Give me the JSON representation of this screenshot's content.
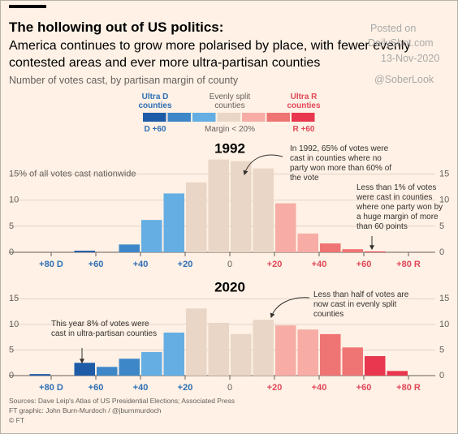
{
  "header": {
    "title": "The hollowing out of US politics:",
    "subtitle": "America continues to grow more polarised by place, with fewer evenly contested areas and ever more ultra-partisan counties",
    "note": "Number of votes cast, by partisan margin of county"
  },
  "watermark": {
    "posted": "Posted on",
    "site": "DailyShot.com",
    "date": "13-Nov-2020",
    "handle": "@SoberLook"
  },
  "legend": {
    "left": "Ultra D counties",
    "middle": "Evenly split counties",
    "right": "Ultra R counties",
    "left_scale": "D +60",
    "middle_scale": "Margin < 20%",
    "right_scale": "R +60",
    "colors": [
      "#1f5ca8",
      "#3d87c9",
      "#64aee3",
      "#ead6c6",
      "#f7aca5",
      "#ef7474",
      "#e8374e"
    ]
  },
  "chart_data": [
    {
      "type": "histogram",
      "title": "1992",
      "bins": [
        -90,
        -80,
        -70,
        -60,
        -50,
        -40,
        -30,
        -20,
        -10,
        0,
        10,
        20,
        30,
        40,
        50,
        60,
        70,
        80,
        90
      ],
      "values": [
        0,
        0,
        0.3,
        0,
        1.5,
        6.2,
        11.3,
        13.4,
        17.8,
        17.5,
        16.1,
        9.4,
        3.6,
        1.7,
        0.6,
        0.15,
        0,
        0
      ],
      "colors": [
        "#1f5ca8",
        "#1f5ca8",
        "#1f5ca8",
        "#3d87c9",
        "#3d87c9",
        "#64aee3",
        "#64aee3",
        "#ead6c6",
        "#ead6c6",
        "#ead6c6",
        "#ead6c6",
        "#f7aca5",
        "#f7aca5",
        "#ef7474",
        "#ef7474",
        "#e8374e",
        "#e8374e",
        "#e8374e"
      ],
      "xlim": [
        -90,
        90
      ],
      "xticks": [
        {
          "value": -80,
          "label": "+80 D"
        },
        {
          "value": -60,
          "label": "+60"
        },
        {
          "value": -40,
          "label": "+40"
        },
        {
          "value": -20,
          "label": "+20"
        },
        0,
        {
          "value": 20,
          "label": "+20"
        },
        {
          "value": 40,
          "label": "+40"
        },
        {
          "value": 60,
          "label": "+60"
        },
        {
          "value": 80,
          "label": "+80 R"
        }
      ],
      "ylim": [
        0,
        19
      ],
      "yticks": [
        0,
        5,
        10,
        {
          "value": 15,
          "label": "15% of all votes cast nationwide"
        }
      ],
      "y2ticks": [
        0,
        5,
        10,
        15
      ],
      "grid": true,
      "annotations": [
        "In 1992, 65% of votes were cast in counties where no party won more than 60% of the vote",
        "Less than 1% of votes were cast in counties where one party won by a huge margin of more than 60 points"
      ]
    },
    {
      "type": "histogram",
      "title": "2020",
      "bins": [
        -90,
        -80,
        -70,
        -60,
        -50,
        -40,
        -30,
        -20,
        -10,
        0,
        10,
        20,
        30,
        40,
        50,
        60,
        70,
        80,
        90
      ],
      "values": [
        0.3,
        0,
        2.5,
        1.7,
        3.3,
        4.6,
        8.4,
        13.1,
        10.3,
        8.1,
        10.9,
        9.8,
        9.0,
        8.1,
        5.5,
        3.8,
        0.9,
        0
      ],
      "colors": [
        "#1f5ca8",
        "#1f5ca8",
        "#1f5ca8",
        "#3d87c9",
        "#3d87c9",
        "#64aee3",
        "#64aee3",
        "#ead6c6",
        "#ead6c6",
        "#ead6c6",
        "#ead6c6",
        "#f7aca5",
        "#f7aca5",
        "#ef7474",
        "#ef7474",
        "#e8374e",
        "#e8374e",
        "#e8374e"
      ],
      "xlim": [
        -90,
        90
      ],
      "xticks": [
        {
          "value": -80,
          "label": "+80 D"
        },
        {
          "value": -60,
          "label": "+60"
        },
        {
          "value": -40,
          "label": "+40"
        },
        {
          "value": -20,
          "label": "+20"
        },
        0,
        {
          "value": 20,
          "label": "+20"
        },
        {
          "value": 40,
          "label": "+40"
        },
        {
          "value": 60,
          "label": "+60"
        },
        {
          "value": 80,
          "label": "+80 R"
        }
      ],
      "ylim": [
        0,
        16
      ],
      "yticks": [
        0,
        5,
        10,
        15
      ],
      "y2ticks": [
        0,
        5,
        10,
        15
      ],
      "grid": true,
      "annotations": [
        "This year 8% of votes were cast in ultra-partisan counties",
        "Less than half of votes are now cast in evenly split counties"
      ]
    }
  ],
  "footer": {
    "source": "Sources: Dave Leip's Atlas of US Presidential Elections; Associated Press",
    "graphic": "FT graphic: John Burn-Murdoch / @jburnmurdoch",
    "copyright": "© FT"
  }
}
